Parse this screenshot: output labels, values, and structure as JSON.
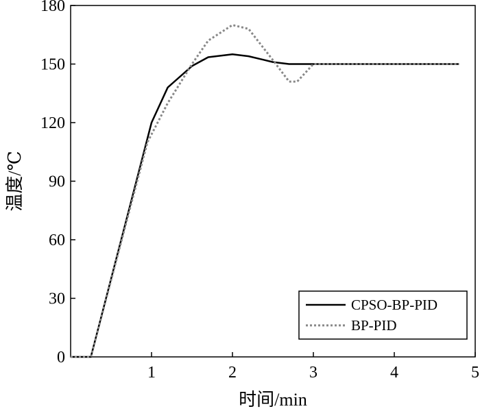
{
  "chart_data": {
    "type": "line",
    "xlabel": "时间/min",
    "ylabel": "温度/℃",
    "xlim": [
      0,
      5
    ],
    "ylim": [
      0,
      180
    ],
    "xticks": [
      1,
      2,
      3,
      4,
      5
    ],
    "yticks": [
      0,
      30,
      60,
      90,
      120,
      150,
      180
    ],
    "grid": false,
    "legend_position": "bottom-right",
    "series": [
      {
        "name": "CPSO-BP-PID",
        "style": "solid",
        "color": "#000000",
        "x": [
          0,
          0.25,
          1.0,
          1.2,
          1.5,
          1.7,
          2.0,
          2.2,
          2.5,
          2.7,
          3.0,
          4.0,
          4.8
        ],
        "y": [
          0,
          0,
          120,
          138,
          149,
          153.5,
          155,
          154,
          151,
          150,
          150,
          150,
          150
        ]
      },
      {
        "name": "BP-PID",
        "style": "dotted",
        "color": "#888888",
        "x": [
          0,
          0.25,
          0.95,
          1.2,
          1.5,
          1.7,
          2.0,
          2.2,
          2.5,
          2.7,
          2.8,
          3.0,
          4.0,
          4.8
        ],
        "y": [
          0,
          0,
          110,
          130,
          150,
          162,
          170,
          168,
          152,
          141,
          141,
          150,
          150,
          150
        ]
      }
    ]
  }
}
